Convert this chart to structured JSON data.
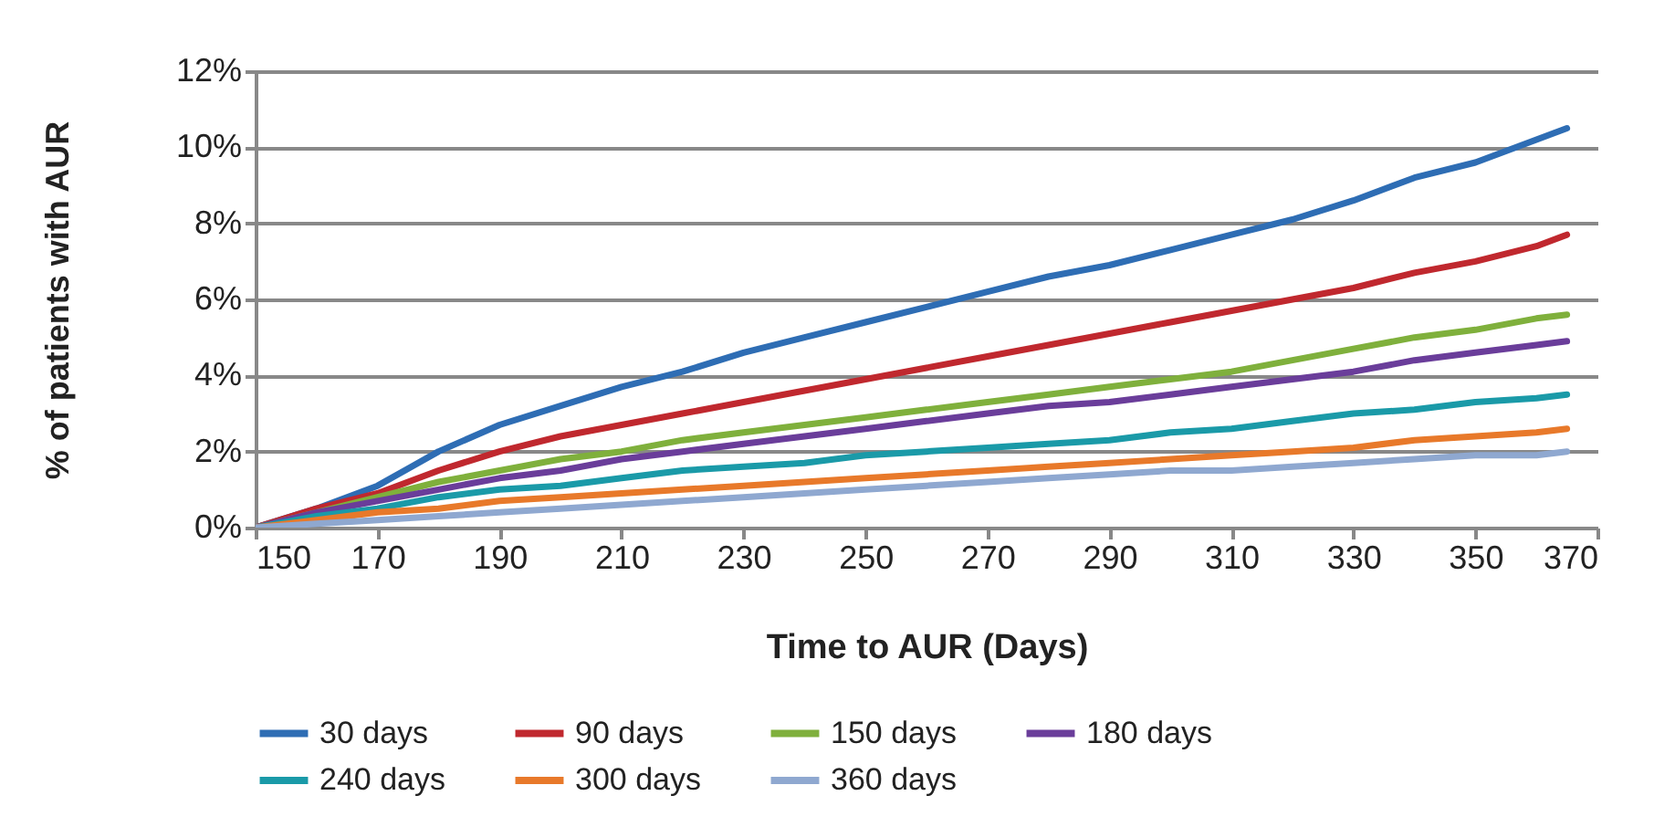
{
  "chart_data": {
    "type": "line",
    "xlabel": "Time to AUR (Days)",
    "ylabel": "% of patients with AUR",
    "x": [
      150,
      160,
      170,
      180,
      190,
      200,
      210,
      220,
      230,
      240,
      250,
      260,
      270,
      280,
      290,
      300,
      310,
      320,
      330,
      340,
      350,
      360,
      365
    ],
    "series": [
      {
        "name": "30 days",
        "color": "#2e6db4",
        "values": [
          0,
          0.5,
          1.1,
          2.0,
          2.7,
          3.2,
          3.7,
          4.1,
          4.6,
          5.0,
          5.4,
          5.8,
          6.2,
          6.6,
          6.9,
          7.3,
          7.7,
          8.1,
          8.6,
          9.2,
          9.6,
          10.2,
          10.5
        ]
      },
      {
        "name": "90 days",
        "color": "#c0282e",
        "values": [
          0,
          0.5,
          0.9,
          1.5,
          2.0,
          2.4,
          2.7,
          3.0,
          3.3,
          3.6,
          3.9,
          4.2,
          4.5,
          4.8,
          5.1,
          5.4,
          5.7,
          6.0,
          6.3,
          6.7,
          7.0,
          7.4,
          7.7
        ]
      },
      {
        "name": "150 days",
        "color": "#7fb03c",
        "values": [
          0,
          0.4,
          0.8,
          1.2,
          1.5,
          1.8,
          2.0,
          2.3,
          2.5,
          2.7,
          2.9,
          3.1,
          3.3,
          3.5,
          3.7,
          3.9,
          4.1,
          4.4,
          4.7,
          5.0,
          5.2,
          5.5,
          5.6
        ]
      },
      {
        "name": "180 days",
        "color": "#6a3d9a",
        "values": [
          0,
          0.4,
          0.7,
          1.0,
          1.3,
          1.5,
          1.8,
          2.0,
          2.2,
          2.4,
          2.6,
          2.8,
          3.0,
          3.2,
          3.3,
          3.5,
          3.7,
          3.9,
          4.1,
          4.4,
          4.6,
          4.8,
          4.9
        ]
      },
      {
        "name": "240 days",
        "color": "#1a9aa8",
        "values": [
          0,
          0.3,
          0.5,
          0.8,
          1.0,
          1.1,
          1.3,
          1.5,
          1.6,
          1.7,
          1.9,
          2.0,
          2.1,
          2.2,
          2.3,
          2.5,
          2.6,
          2.8,
          3.0,
          3.1,
          3.3,
          3.4,
          3.5
        ]
      },
      {
        "name": "300 days",
        "color": "#e8792a",
        "values": [
          0,
          0.2,
          0.4,
          0.5,
          0.7,
          0.8,
          0.9,
          1.0,
          1.1,
          1.2,
          1.3,
          1.4,
          1.5,
          1.6,
          1.7,
          1.8,
          1.9,
          2.0,
          2.1,
          2.3,
          2.4,
          2.5,
          2.6
        ]
      },
      {
        "name": "360 days",
        "color": "#8fa8d0",
        "values": [
          0,
          0.1,
          0.2,
          0.3,
          0.4,
          0.5,
          0.6,
          0.7,
          0.8,
          0.9,
          1.0,
          1.1,
          1.2,
          1.3,
          1.4,
          1.5,
          1.5,
          1.6,
          1.7,
          1.8,
          1.9,
          1.9,
          2.0
        ]
      }
    ],
    "xlim": [
      150,
      370
    ],
    "xticks": [
      150,
      170,
      190,
      210,
      230,
      250,
      270,
      290,
      310,
      330,
      350,
      370
    ],
    "ylim": [
      0,
      12
    ],
    "yticks": [
      {
        "value": 0,
        "label": "0%"
      },
      {
        "value": 2,
        "label": "2%"
      },
      {
        "value": 4,
        "label": "4%"
      },
      {
        "value": 6,
        "label": "6%"
      },
      {
        "value": 8,
        "label": "8%"
      },
      {
        "value": 10,
        "label": "10%"
      },
      {
        "value": 12,
        "label": "12%"
      }
    ],
    "grid": "y",
    "legend": "bottom",
    "line_style": "solid"
  }
}
